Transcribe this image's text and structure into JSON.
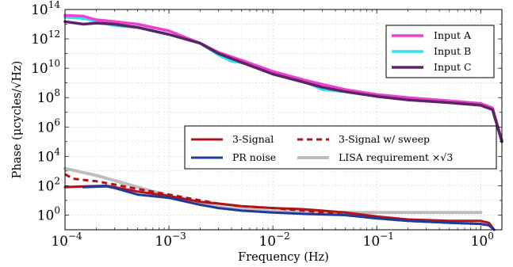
{
  "chart_data": {
    "type": "line",
    "xlabel": "Frequency (Hz)",
    "ylabel": "Phase (μcycles/√Hz)",
    "xscale": "log",
    "yscale": "log",
    "xlim": [
      0.0001,
      1.6
    ],
    "ylim": [
      0.1,
      100000000000000
    ],
    "grid": true,
    "x_ticks": [
      {
        "base": "10",
        "exp": "−4",
        "value": 0.0001
      },
      {
        "base": "10",
        "exp": "−3",
        "value": 0.001
      },
      {
        "base": "10",
        "exp": "−2",
        "value": 0.01
      },
      {
        "base": "10",
        "exp": "−1",
        "value": 0.1
      },
      {
        "base": "10",
        "exp": "0",
        "value": 1
      }
    ],
    "y_ticks": [
      {
        "base": "10",
        "exp": "0",
        "value": 1
      },
      {
        "base": "10",
        "exp": "2",
        "value": 100
      },
      {
        "base": "10",
        "exp": "4",
        "value": 10000
      },
      {
        "base": "10",
        "exp": "6",
        "value": 1000000
      },
      {
        "base": "10",
        "exp": "8",
        "value": 100000000
      },
      {
        "base": "10",
        "exp": "10",
        "value": 10000000000
      },
      {
        "base": "10",
        "exp": "12",
        "value": 1000000000000
      },
      {
        "base": "10",
        "exp": "14",
        "value": 100000000000000
      }
    ],
    "legend_top": {
      "placement": "top-right",
      "entries": [
        {
          "name": "Input A",
          "color": "#ee3fd0"
        },
        {
          "name": "Input B",
          "color": "#35e1ec"
        },
        {
          "name": "Input C",
          "color": "#5b2463"
        }
      ]
    },
    "legend_bottom": {
      "placement": "center-right",
      "entries": [
        {
          "label": "3-Signal",
          "color": "#b01318",
          "dash": false
        },
        {
          "label": "3-Signal w/ sweep",
          "color": "#b01318",
          "dash": true
        },
        {
          "label": "PR noise",
          "color": "#1f3a9c",
          "dash": false
        },
        {
          "label": "LISA requirement ×√3",
          "color": "#bdbdbd",
          "dash": false
        }
      ]
    },
    "series": [
      {
        "name": "Input A",
        "color": "#ee3fd0",
        "points": [
          [
            0.0001,
            40000000000000.0
          ],
          [
            0.00015,
            35000000000000.0
          ],
          [
            0.0002,
            20000000000000.0
          ],
          [
            0.0003,
            15000000000000.0
          ],
          [
            0.0005,
            10000000000000.0
          ],
          [
            0.001,
            3500000000000.0
          ],
          [
            0.002,
            500000000000.0
          ],
          [
            0.003,
            120000000000.0
          ],
          [
            0.005,
            35000000000.0
          ],
          [
            0.01,
            6000000000.0
          ],
          [
            0.02,
            1600000000.0
          ],
          [
            0.03,
            800000000.0
          ],
          [
            0.05,
            350000000.0
          ],
          [
            0.1,
            160000000.0
          ],
          [
            0.2,
            100000000.0
          ],
          [
            0.5,
            60000000.0
          ],
          [
            1,
            40000000.0
          ],
          [
            1.3,
            20000000.0
          ],
          [
            1.6,
            120000.0
          ]
        ]
      },
      {
        "name": "Input B",
        "color": "#35e1ec",
        "points": [
          [
            0.0001,
            30000000000000.0
          ],
          [
            0.00015,
            25000000000000.0
          ],
          [
            0.0002,
            16000000000000.0
          ],
          [
            0.0003,
            8000000000000.0
          ],
          [
            0.0005,
            6000000000000.0
          ],
          [
            0.001,
            2000000000000.0
          ],
          [
            0.002,
            500000000000.0
          ],
          [
            0.003,
            80000000000.0
          ],
          [
            0.004,
            30000000000.0
          ],
          [
            0.006,
            20000000000.0
          ],
          [
            0.01,
            5000000000.0
          ],
          [
            0.02,
            1300000000.0
          ],
          [
            0.03,
            350000000.0
          ],
          [
            0.05,
            250000000.0
          ],
          [
            0.1,
            140000000.0
          ],
          [
            0.2,
            80000000.0
          ],
          [
            0.5,
            50000000.0
          ],
          [
            1,
            35000000.0
          ],
          [
            1.3,
            18000000.0
          ],
          [
            1.6,
            100000.0
          ]
        ]
      },
      {
        "name": "Input C",
        "color": "#5b2463",
        "points": [
          [
            0.0001,
            15000000000000.0
          ],
          [
            0.00015,
            10000000000000.0
          ],
          [
            0.0002,
            12000000000000.0
          ],
          [
            0.0003,
            10000000000000.0
          ],
          [
            0.0005,
            6000000000000.0
          ],
          [
            0.001,
            2000000000000.0
          ],
          [
            0.002,
            500000000000.0
          ],
          [
            0.003,
            100000000000.0
          ],
          [
            0.005,
            25000000000.0
          ],
          [
            0.01,
            4000000000.0
          ],
          [
            0.02,
            1100000000.0
          ],
          [
            0.03,
            500000000.0
          ],
          [
            0.05,
            250000000.0
          ],
          [
            0.1,
            120000000.0
          ],
          [
            0.2,
            70000000.0
          ],
          [
            0.5,
            45000000.0
          ],
          [
            1,
            30000000.0
          ],
          [
            1.3,
            15000000.0
          ],
          [
            1.6,
            100000.0
          ]
        ]
      },
      {
        "name": "3-Signal",
        "color": "#b01318",
        "dash": false,
        "width": 3,
        "points": [
          [
            0.0001,
            80
          ],
          [
            0.00015,
            90
          ],
          [
            0.00025,
            100
          ],
          [
            0.0003,
            80
          ],
          [
            0.0005,
            40
          ],
          [
            0.001,
            20
          ],
          [
            0.002,
            8
          ],
          [
            0.003,
            6
          ],
          [
            0.005,
            4
          ],
          [
            0.01,
            3
          ],
          [
            0.02,
            2.5
          ],
          [
            0.03,
            2
          ],
          [
            0.05,
            1.5
          ],
          [
            0.1,
            0.8
          ],
          [
            0.2,
            0.5
          ],
          [
            0.5,
            0.4
          ],
          [
            1,
            0.4
          ],
          [
            1.2,
            0.3
          ],
          [
            1.35,
            0.1
          ]
        ]
      },
      {
        "name": "3-Signal w/ sweep",
        "color": "#b01318",
        "dash": true,
        "width": 3,
        "points": [
          [
            0.0001,
            600
          ],
          [
            0.00012,
            300
          ],
          [
            0.0002,
            200
          ],
          [
            0.0003,
            120
          ],
          [
            0.0005,
            60
          ],
          [
            0.001,
            25
          ],
          [
            0.002,
            10
          ],
          [
            0.003,
            6
          ],
          [
            0.005,
            4
          ],
          [
            0.01,
            3
          ],
          [
            0.02,
            2
          ],
          [
            0.05,
            1
          ],
          [
            0.1,
            0.6
          ],
          [
            0.2,
            0.4
          ],
          [
            0.5,
            0.3
          ],
          [
            1,
            0.25
          ],
          [
            1.2,
            0.2
          ],
          [
            1.35,
            0.1
          ]
        ]
      },
      {
        "name": "PR noise",
        "color": "#1f3a9c",
        "dash": false,
        "width": 3,
        "points": [
          [
            0.00015,
            80
          ],
          [
            0.00025,
            90
          ],
          [
            0.0003,
            70
          ],
          [
            0.0005,
            25
          ],
          [
            0.001,
            15
          ],
          [
            0.002,
            5
          ],
          [
            0.003,
            3
          ],
          [
            0.005,
            2
          ],
          [
            0.01,
            1.5
          ],
          [
            0.02,
            1.2
          ],
          [
            0.05,
            1
          ],
          [
            0.1,
            0.6
          ],
          [
            0.2,
            0.4
          ],
          [
            0.5,
            0.3
          ],
          [
            1,
            0.25
          ],
          [
            1.2,
            0.2
          ],
          [
            1.35,
            0.1
          ]
        ]
      },
      {
        "name": "LISA requirement ×√3",
        "color": "#bdbdbd",
        "dash": false,
        "width": 4,
        "points": [
          [
            0.0001,
            1500
          ],
          [
            0.0002,
            500
          ],
          [
            0.0005,
            80
          ],
          [
            0.001,
            20
          ],
          [
            0.002,
            6
          ],
          [
            0.003,
            3.5
          ],
          [
            0.005,
            2.5
          ],
          [
            0.01,
            1.8
          ],
          [
            0.02,
            1.6
          ],
          [
            0.05,
            1.5
          ],
          [
            0.1,
            1.5
          ],
          [
            1,
            1.5
          ]
        ]
      }
    ]
  }
}
